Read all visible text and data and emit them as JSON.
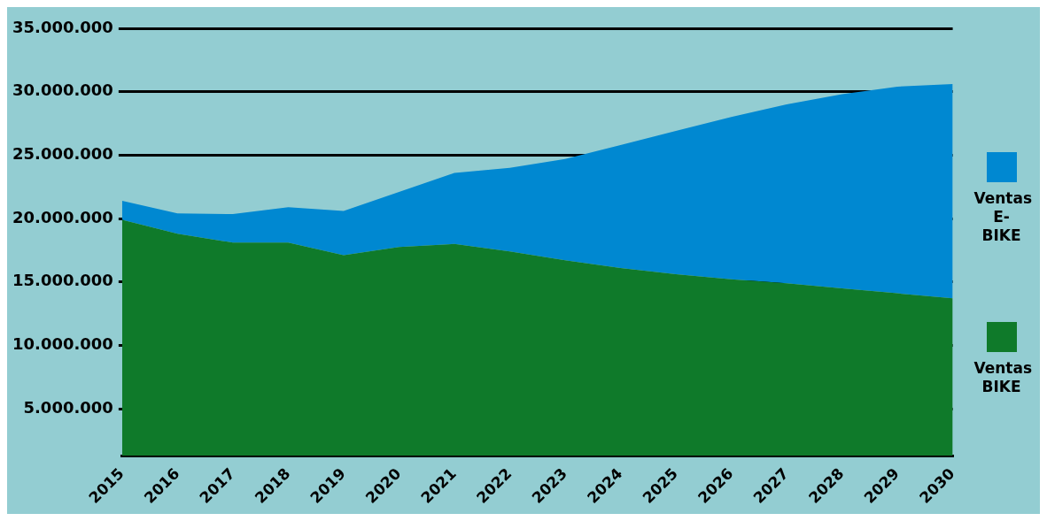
{
  "chart_data": {
    "type": "area",
    "stacked": true,
    "categories": [
      "2015",
      "2016",
      "2017",
      "2018",
      "2019",
      "2020",
      "2021",
      "2022",
      "2023",
      "2024",
      "2025",
      "2026",
      "2027",
      "2028",
      "2029",
      "2030"
    ],
    "series": [
      {
        "name": "Ventas BIKE",
        "color": "#0f7a2a",
        "values": [
          19900000,
          18800000,
          18100000,
          18100000,
          17100000,
          17750000,
          18000000,
          17400000,
          16700000,
          16100000,
          15600000,
          15200000,
          14900000,
          14500000,
          14100000,
          13700000
        ]
      },
      {
        "name": "Ventas E-BIKE",
        "color": "#0088d1",
        "values": [
          1500000,
          1600000,
          2250000,
          2800000,
          3500000,
          4350000,
          5600000,
          6600000,
          8000000,
          9700000,
          11300000,
          12800000,
          14100000,
          15300000,
          16300000,
          16900000
        ]
      }
    ],
    "ylim": [
      1300000,
      35000000
    ],
    "yticks": [
      {
        "value": 5000000,
        "label": "5.000.000"
      },
      {
        "value": 10000000,
        "label": "10.000.000"
      },
      {
        "value": 15000000,
        "label": "15.000.000"
      },
      {
        "value": 20000000,
        "label": "20.000.000"
      },
      {
        "value": 25000000,
        "label": "25.000.000"
      },
      {
        "value": 30000000,
        "label": "30.000.000"
      },
      {
        "value": 35000000,
        "label": "35.000.000"
      }
    ],
    "grid": "y",
    "legend": "right"
  }
}
